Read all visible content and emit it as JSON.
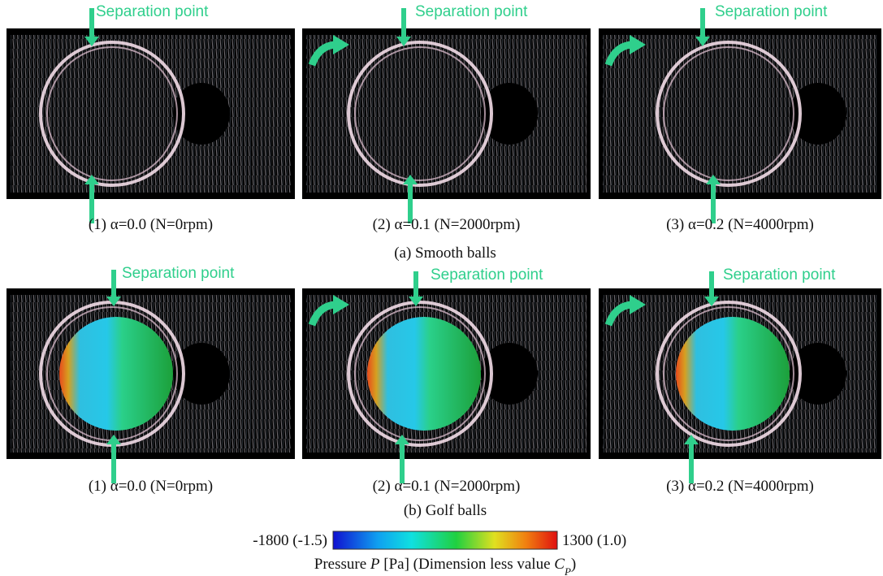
{
  "rows": [
    {
      "group_label": "(a) Smooth balls",
      "balls": false,
      "items": [
        {
          "caption": "(1) α=0.0 (N=0rpm)",
          "separation_label": "Separation point"
        },
        {
          "caption": "(2) α=0.1 (N=2000rpm)",
          "separation_label": "Separation point"
        },
        {
          "caption": "(3) α=0.2 (N=4000rpm)",
          "separation_label": "Separation point"
        }
      ]
    },
    {
      "group_label": "(b) Golf balls",
      "balls": true,
      "items": [
        {
          "caption": "(1) α=0.0 (N=0rpm)",
          "separation_label": "Separation point"
        },
        {
          "caption": "(2) α=0.1 (N=2000rpm)",
          "separation_label": "Separation point"
        },
        {
          "caption": "(3) α=0.2 (N=4000rpm)",
          "separation_label": "Separation point"
        }
      ]
    }
  ],
  "colorbar": {
    "min_label": "-1800 (-1.5)",
    "max_label": "1300 (1.0)",
    "title_parts": [
      "Pressure ",
      "P",
      " [Pa] (Dimension less value ",
      "C",
      "P",
      ")"
    ]
  }
}
